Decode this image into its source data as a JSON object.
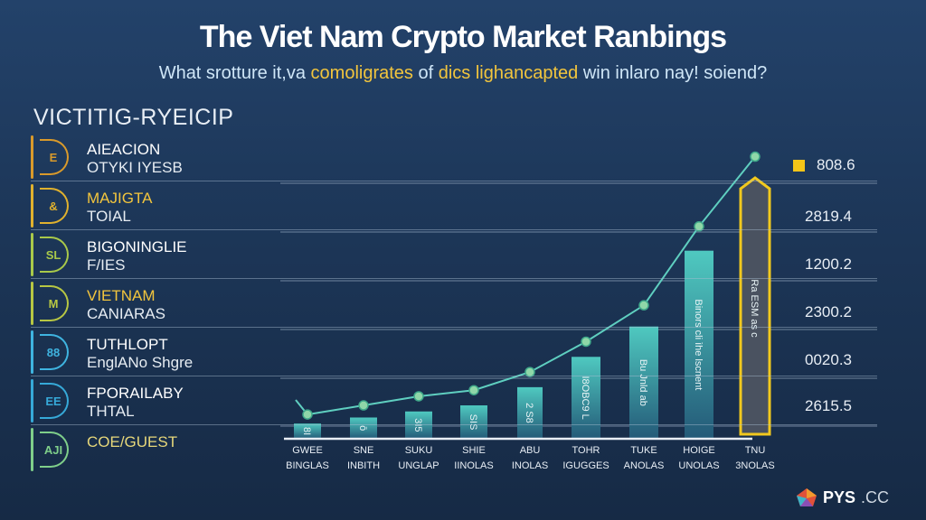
{
  "header": {
    "title": "The Viet Nam Crypto Market Ranbings",
    "subtitle_parts": [
      {
        "text": "What srotture it,va ",
        "highlight": false
      },
      {
        "text": "comoligrates",
        "highlight": true
      },
      {
        "text": " of ",
        "highlight": false
      },
      {
        "text": "dics lighancapted",
        "highlight": true
      },
      {
        "text": " win inlaro nay! soiend?",
        "highlight": false
      }
    ]
  },
  "sidebar": {
    "title": "VICTITIG-RYEICIP",
    "items": [
      {
        "icon": "building-icon",
        "glyph": "E",
        "line1": "AIEACION",
        "line2": "OTYKI IYESB",
        "color": "#d99a2b",
        "line1_color": "#ffffff"
      },
      {
        "icon": "coin-icon",
        "glyph": "&",
        "line1": "MAJIGTA",
        "line2": "TOIAL",
        "color": "#e0b12e",
        "line1_color": "#f2c53d"
      },
      {
        "icon": "chart-icon",
        "glyph": "SL",
        "line1": "BIGONINGLIE",
        "line2": "F/IES",
        "color": "#a9c94a",
        "line1_color": "#ffffff"
      },
      {
        "icon": "market-icon",
        "glyph": "M",
        "line1": "VIETNAM",
        "line2": "CANIARAS",
        "color": "#b7c743",
        "line1_color": "#f2c53d"
      },
      {
        "icon": "users-icon",
        "glyph": "88",
        "line1": "TUTHLOPT",
        "line2": "EnglANo Shgre",
        "color": "#3fb4e0",
        "line1_color": "#ffffff"
      },
      {
        "icon": "people-icon",
        "glyph": "EE",
        "line1": "FPORAILABY",
        "line2": "THTAL",
        "color": "#36a9d8",
        "line1_color": "#ffffff"
      },
      {
        "icon": "ai-icon",
        "glyph": "AJI",
        "line1": "COE/GUEST",
        "line2": "",
        "color": "#7fcf8a",
        "line1_color": "#e6d77a"
      }
    ]
  },
  "chart_data": {
    "type": "bar",
    "title": "",
    "categories": [
      [
        "GWEE",
        "BINGLAS"
      ],
      [
        "SNE",
        "INBITH"
      ],
      [
        "SUKU",
        "UNGLAP"
      ],
      [
        "SHIE",
        "IINOLAS"
      ],
      [
        "ABU",
        "INOLAS"
      ],
      [
        "TOHR",
        "IGUGGES"
      ],
      [
        "TUKE",
        "ANOLAS"
      ],
      [
        "HOIGE",
        "UNOLAS"
      ],
      [
        "TNU",
        "3NOLAS"
      ]
    ],
    "bar_values": [
      5,
      7,
      9,
      11,
      17,
      27,
      37,
      62,
      86
    ],
    "line_values": [
      8,
      11,
      14,
      16,
      22,
      32,
      44,
      70,
      93
    ],
    "bar_inner_text": [
      "8I",
      "ō",
      "3I5",
      "SIS",
      "2 S8",
      "I8OBC9 L",
      "Bu Jnld ab",
      "Binors cli ìhe lscnent",
      "Ra ESM as c"
    ],
    "highlighted_index": 8,
    "right_values": [
      "2819.4",
      "1200.2",
      "2300.2",
      "0020.3",
      "2615.5"
    ],
    "legend": {
      "label": "808.6",
      "color": "#f5c518",
      "placement": "top-right"
    },
    "grid": true,
    "colors": {
      "bar": "#4fc9c0",
      "line": "#5fcfc0",
      "highlight_outline": "#f2c91e",
      "highlight_fill": "#4a5260"
    }
  },
  "footer": {
    "logo_main": "PYS",
    "logo_suffix": ".CC"
  }
}
